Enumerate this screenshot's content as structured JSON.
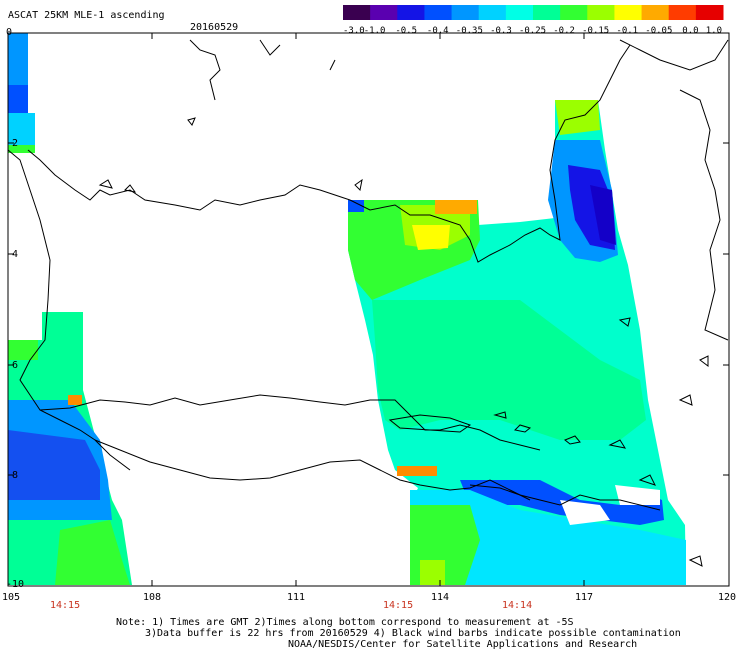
{
  "header": {
    "title": "ASCAT 25KM MLE-1 ascending",
    "date": "20160529"
  },
  "colorbar": {
    "labels": [
      "-3.0",
      "-1.0",
      "-0.5",
      "-0.4",
      "-0.35",
      "-0.3",
      "-0.25",
      "-0.2",
      "-0.15",
      "-0.1",
      "-0.05",
      "0.0",
      "1.0"
    ],
    "colors": [
      "#3a0050",
      "#5a00b0",
      "#1414e6",
      "#0050ff",
      "#0096ff",
      "#00d2ff",
      "#00ffe6",
      "#00ff96",
      "#32ff32",
      "#9bff00",
      "#ffff00",
      "#ffaa00",
      "#ff3c00",
      "#e60000"
    ]
  },
  "axes": {
    "x_ticks": [
      "105",
      "108",
      "111",
      "114",
      "117",
      "120"
    ],
    "y_ticks": [
      "0",
      "-2",
      "-4",
      "-6",
      "-8",
      "-10"
    ]
  },
  "times": [
    "14:15",
    "14:15",
    "14:14"
  ],
  "notes": {
    "line1": "Note: 1) Times are GMT 2)Times along bottom correspond to measurement at -5S",
    "line2": "3)Data buffer is 22 hrs from 20160529 4) Black wind barbs indicate possible contamination",
    "line3": "NOAA/NESDIS/Center for Satellite Applications and Research"
  }
}
